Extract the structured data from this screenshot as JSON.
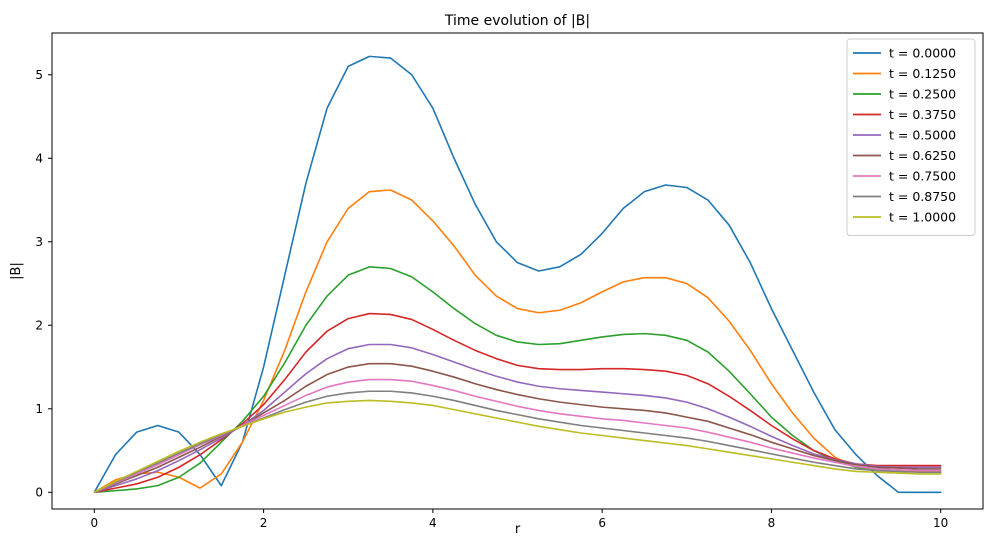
{
  "chart_data": {
    "type": "line",
    "title": "Time evolution of |B|",
    "xlabel": "r",
    "ylabel": "|B|",
    "xlim": [
      -0.5,
      10.5
    ],
    "ylim": [
      -0.2,
      5.5
    ],
    "xticks": [
      0,
      2,
      4,
      6,
      8,
      10
    ],
    "yticks": [
      0,
      1,
      2,
      3,
      4,
      5
    ],
    "grid": false,
    "legend_position": "top-right",
    "x": [
      0,
      0.25,
      0.5,
      0.75,
      1.0,
      1.25,
      1.5,
      1.75,
      2.0,
      2.25,
      2.5,
      2.75,
      3.0,
      3.25,
      3.5,
      3.75,
      4.0,
      4.25,
      4.5,
      4.75,
      5.0,
      5.25,
      5.5,
      5.75,
      6.0,
      6.25,
      6.5,
      6.75,
      7.0,
      7.25,
      7.5,
      7.75,
      8.0,
      8.25,
      8.5,
      8.75,
      9.0,
      9.25,
      9.5,
      9.75,
      10.0
    ],
    "series": [
      {
        "name": "t = 0.0000",
        "color": "#1f77b4",
        "values": [
          0.0,
          0.45,
          0.72,
          0.8,
          0.72,
          0.45,
          0.08,
          0.6,
          1.5,
          2.6,
          3.7,
          4.6,
          5.1,
          5.22,
          5.2,
          5.0,
          4.6,
          4.0,
          3.45,
          3.0,
          2.75,
          2.65,
          2.7,
          2.85,
          3.1,
          3.4,
          3.6,
          3.68,
          3.65,
          3.5,
          3.2,
          2.75,
          2.2,
          1.7,
          1.2,
          0.75,
          0.45,
          0.2,
          0.0,
          0.0,
          0.0
        ]
      },
      {
        "name": "t = 0.1250",
        "color": "#ff7f0e",
        "values": [
          0.0,
          0.15,
          0.22,
          0.24,
          0.18,
          0.05,
          0.22,
          0.6,
          1.1,
          1.7,
          2.4,
          3.0,
          3.4,
          3.6,
          3.62,
          3.5,
          3.25,
          2.95,
          2.6,
          2.35,
          2.2,
          2.15,
          2.18,
          2.27,
          2.4,
          2.52,
          2.57,
          2.57,
          2.5,
          2.33,
          2.05,
          1.7,
          1.3,
          0.95,
          0.65,
          0.42,
          0.3,
          0.26,
          0.25,
          0.25,
          0.25
        ]
      },
      {
        "name": "t = 0.2500",
        "color": "#2ca02c",
        "values": [
          0.0,
          0.02,
          0.04,
          0.08,
          0.18,
          0.35,
          0.6,
          0.85,
          1.15,
          1.55,
          2.0,
          2.35,
          2.6,
          2.7,
          2.68,
          2.58,
          2.4,
          2.2,
          2.02,
          1.88,
          1.8,
          1.77,
          1.78,
          1.82,
          1.86,
          1.89,
          1.9,
          1.88,
          1.82,
          1.68,
          1.45,
          1.18,
          0.9,
          0.68,
          0.5,
          0.38,
          0.3,
          0.28,
          0.3,
          0.3,
          0.3
        ]
      },
      {
        "name": "t = 0.3750",
        "color": "#d62728",
        "values": [
          0.0,
          0.05,
          0.1,
          0.18,
          0.3,
          0.45,
          0.63,
          0.82,
          1.05,
          1.35,
          1.68,
          1.93,
          2.08,
          2.14,
          2.13,
          2.07,
          1.95,
          1.82,
          1.7,
          1.6,
          1.52,
          1.48,
          1.47,
          1.47,
          1.48,
          1.48,
          1.47,
          1.45,
          1.4,
          1.3,
          1.15,
          0.98,
          0.8,
          0.64,
          0.5,
          0.4,
          0.34,
          0.32,
          0.32,
          0.32,
          0.32
        ]
      },
      {
        "name": "t = 0.5000",
        "color": "#9467bd",
        "values": [
          0.0,
          0.08,
          0.16,
          0.26,
          0.38,
          0.51,
          0.65,
          0.8,
          0.98,
          1.2,
          1.42,
          1.6,
          1.72,
          1.77,
          1.77,
          1.73,
          1.65,
          1.56,
          1.47,
          1.39,
          1.32,
          1.27,
          1.24,
          1.22,
          1.2,
          1.18,
          1.16,
          1.13,
          1.08,
          1.0,
          0.9,
          0.79,
          0.67,
          0.56,
          0.46,
          0.39,
          0.34,
          0.31,
          0.3,
          0.3,
          0.3
        ]
      },
      {
        "name": "t = 0.6250",
        "color": "#8c564b",
        "values": [
          0.0,
          0.1,
          0.2,
          0.3,
          0.42,
          0.54,
          0.67,
          0.8,
          0.95,
          1.1,
          1.27,
          1.41,
          1.5,
          1.54,
          1.54,
          1.51,
          1.45,
          1.38,
          1.3,
          1.23,
          1.17,
          1.12,
          1.08,
          1.05,
          1.02,
          1.0,
          0.98,
          0.95,
          0.9,
          0.85,
          0.77,
          0.69,
          0.6,
          0.52,
          0.44,
          0.38,
          0.33,
          0.3,
          0.29,
          0.28,
          0.28
        ]
      },
      {
        "name": "t = 0.7500",
        "color": "#e377c2",
        "values": [
          0.0,
          0.11,
          0.22,
          0.33,
          0.45,
          0.57,
          0.68,
          0.8,
          0.92,
          1.04,
          1.16,
          1.26,
          1.32,
          1.35,
          1.35,
          1.33,
          1.28,
          1.22,
          1.15,
          1.09,
          1.03,
          0.98,
          0.94,
          0.91,
          0.88,
          0.86,
          0.83,
          0.8,
          0.77,
          0.72,
          0.66,
          0.6,
          0.53,
          0.47,
          0.41,
          0.36,
          0.31,
          0.28,
          0.27,
          0.26,
          0.26
        ]
      },
      {
        "name": "t = 0.8750",
        "color": "#7f7f7f",
        "values": [
          0.0,
          0.12,
          0.24,
          0.35,
          0.47,
          0.58,
          0.69,
          0.79,
          0.89,
          0.99,
          1.08,
          1.15,
          1.19,
          1.21,
          1.21,
          1.19,
          1.15,
          1.1,
          1.04,
          0.98,
          0.93,
          0.88,
          0.84,
          0.8,
          0.77,
          0.74,
          0.71,
          0.68,
          0.65,
          0.61,
          0.56,
          0.51,
          0.46,
          0.41,
          0.36,
          0.32,
          0.28,
          0.26,
          0.25,
          0.24,
          0.24
        ]
      },
      {
        "name": "t = 1.0000",
        "color": "#bcbd22",
        "values": [
          0.0,
          0.13,
          0.25,
          0.37,
          0.49,
          0.6,
          0.7,
          0.79,
          0.88,
          0.96,
          1.02,
          1.07,
          1.09,
          1.1,
          1.09,
          1.07,
          1.04,
          0.99,
          0.94,
          0.89,
          0.84,
          0.79,
          0.75,
          0.71,
          0.68,
          0.65,
          0.62,
          0.59,
          0.56,
          0.52,
          0.48,
          0.44,
          0.4,
          0.36,
          0.32,
          0.28,
          0.25,
          0.24,
          0.23,
          0.22,
          0.22
        ]
      }
    ]
  }
}
